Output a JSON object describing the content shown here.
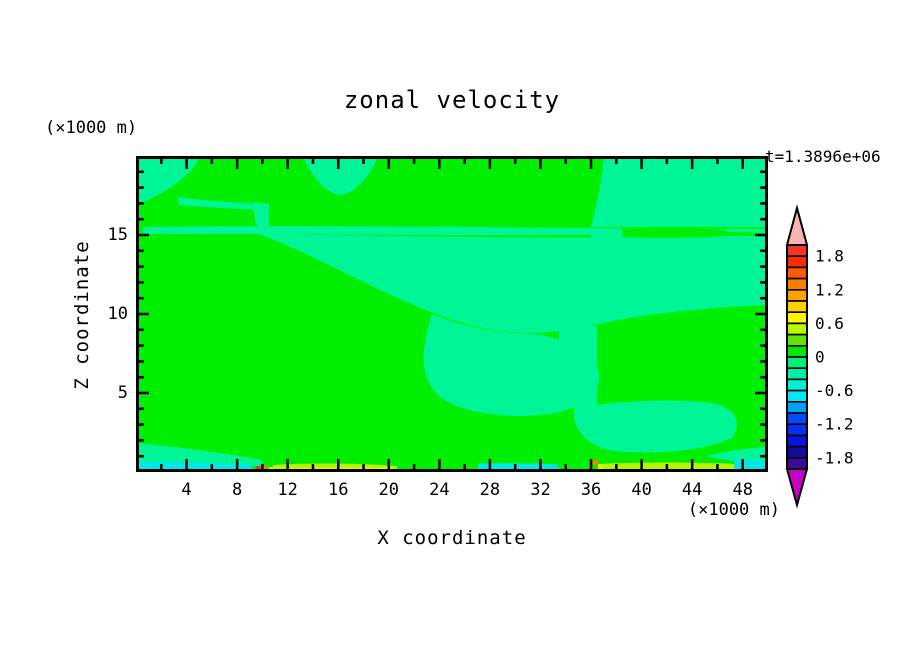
{
  "title": "zonal velocity",
  "timestamp": "t=1.3896e+06",
  "axes": {
    "x_label": "X coordinate",
    "x_unit": "(×1000 m)",
    "y_label": "Z coordinate",
    "y_unit": "(×1000 m)",
    "x_tick_labels": [
      "4",
      "8",
      "12",
      "16",
      "20",
      "24",
      "28",
      "32",
      "36",
      "40",
      "44",
      "48"
    ],
    "x_tick_values": [
      4,
      8,
      12,
      16,
      20,
      24,
      28,
      32,
      36,
      40,
      44,
      48
    ],
    "y_tick_labels": [
      "15",
      "10",
      "5"
    ],
    "y_tick_values": [
      15,
      10,
      5
    ]
  },
  "colorbar": {
    "labels": [
      "1.8",
      "1.2",
      "0.6",
      "0",
      "-0.6",
      "-1.2",
      "-1.8"
    ],
    "segment_colors": [
      "#f43524",
      "#fa2c00",
      "#f95b00",
      "#fb7e00",
      "#fba400",
      "#fdd100",
      "#fbf600",
      "#b7f800",
      "#5fe602",
      "#00e800",
      "#00ef7c",
      "#00f0a8",
      "#00f2d2",
      "#00e9f5",
      "#00a0f8",
      "#004bfa",
      "#0031f5",
      "#0714dc",
      "#140b9a",
      "#3a0b96"
    ],
    "over_color": "#f9b4b0",
    "under_color": "#c602c6"
  },
  "palette": {
    "green": "#00ee00",
    "spring": "#00f596",
    "cyan": "#00e7e6",
    "yellow_green": "#b5f405",
    "yellow": "#f2f400",
    "orange": "#fb7e00",
    "red": "#f43524"
  },
  "chart_data": {
    "type": "heatmap",
    "subtype": "filled-contour",
    "title": "zonal velocity",
    "xlabel": "X coordinate",
    "ylabel": "Z coordinate",
    "x_unit": "×1000 m",
    "y_unit": "×1000 m",
    "x_range": [
      0,
      50
    ],
    "y_range": [
      0,
      20
    ],
    "x_major_ticks": [
      4,
      8,
      12,
      16,
      20,
      24,
      28,
      32,
      36,
      40,
      44,
      48
    ],
    "y_major_ticks": [
      5,
      10,
      15
    ],
    "time_annotation": "t=1.3896e+06",
    "contour_interval": 0.2,
    "colorbar_range": [
      -2.0,
      2.0
    ],
    "colorbar_labeled_levels": [
      1.8,
      1.2,
      0.6,
      0,
      -0.6,
      -1.2,
      -1.8
    ],
    "legend_position": "right",
    "grid": false,
    "regions": [
      {
        "value_band": "0.0 to 0.2",
        "appearance": "bright green",
        "coverage": "dominant fill: upper band z≈15.6–20 for x≈4–37, left block x≲10 between z≈10–15.5, large lower-right and bottom interior areas"
      },
      {
        "value_band": "-0.2 to 0.0",
        "appearance": "spring green",
        "coverage": "top-left corner wedge with thin tail near z≈16.5, small triangular blob at top x≈13–19, right side x≳37 from top down to z≈9.5, thin horizontal stripe at z≈15.2 across nearly full width, large diagonal mid-depth region from (x≈10, z≈15) toward center, lower-middle blob x≈24–37 z≈4–10, near-bottom tongue x≈35–50 z≈1–4, small bottom-left wedge x≲10 z≲1.8"
      },
      {
        "value_band": "-0.6 to -0.2",
        "appearance": "cyan bottom boundary strips",
        "coverage": "z≲0.6 at x≈0–9, x≈27–33, x≈47–50"
      },
      {
        "value_band": "0.2 to 0.6",
        "appearance": "yellow-green / yellow bottom boundary strips",
        "coverage": "z≲0.5 at x≈11–21 and x≈37–47"
      },
      {
        "value_band": "0.6 to 1.4",
        "appearance": "tiny orange/red specks",
        "coverage": "at the bottom boundary near x≈9.5–11 and x≈36–37"
      }
    ]
  }
}
